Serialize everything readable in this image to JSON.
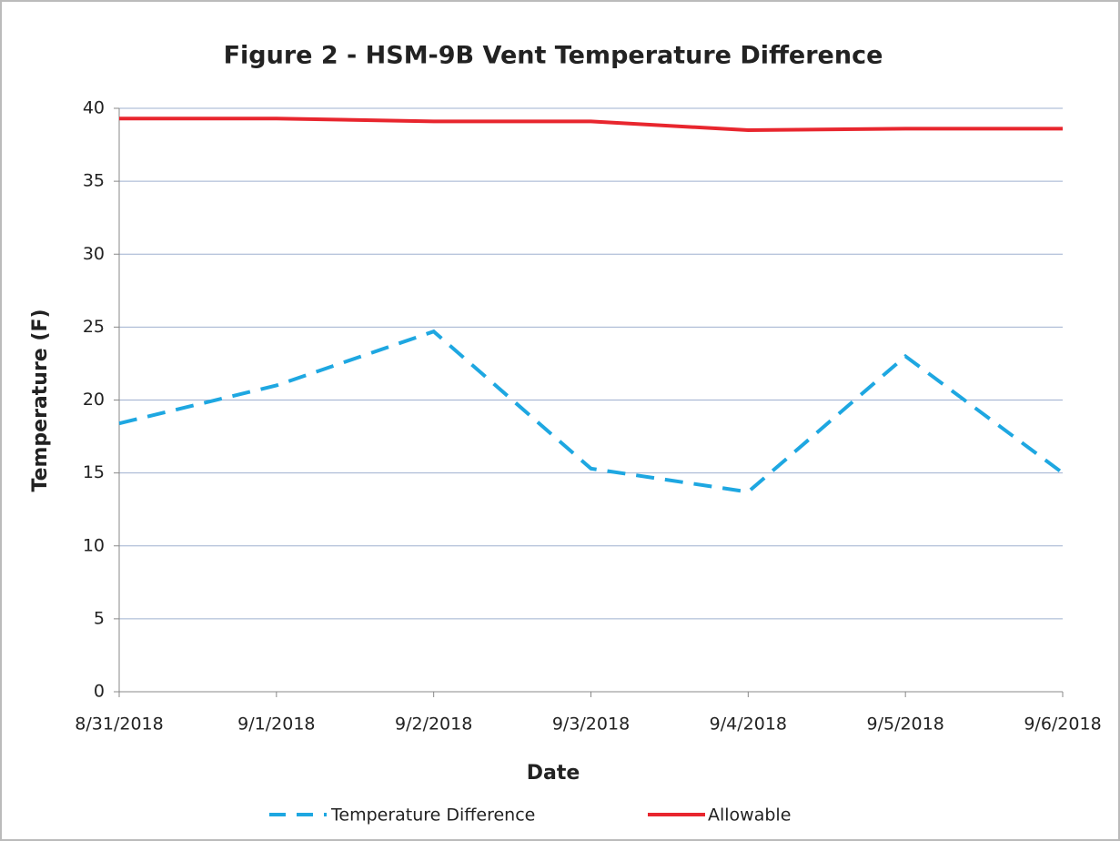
{
  "chart_data": {
    "type": "line",
    "title": "Figure 2 - HSM-9B Vent Temperature Difference",
    "x_label": "Date",
    "y_label": "Temperature (F)",
    "categories": [
      "8/31/2018",
      "9/1/2018",
      "9/2/2018",
      "9/3/2018",
      "9/4/2018",
      "9/5/2018",
      "9/6/2018"
    ],
    "series": [
      {
        "name": "Temperature Difference",
        "color": "#1ea7e1",
        "dash": true,
        "values": [
          18.4,
          21,
          24.7,
          15.3,
          13.7,
          23,
          15
        ]
      },
      {
        "name": "Allowable",
        "color": "#e8262e",
        "dash": false,
        "values": [
          39.3,
          39.3,
          39.1,
          39.1,
          38.5,
          38.6,
          38.6
        ]
      }
    ],
    "ylim": [
      0,
      40
    ],
    "yticks": [
      0,
      5,
      10,
      15,
      20,
      25,
      30,
      35,
      40
    ],
    "grid": true,
    "legend": "bottom"
  }
}
